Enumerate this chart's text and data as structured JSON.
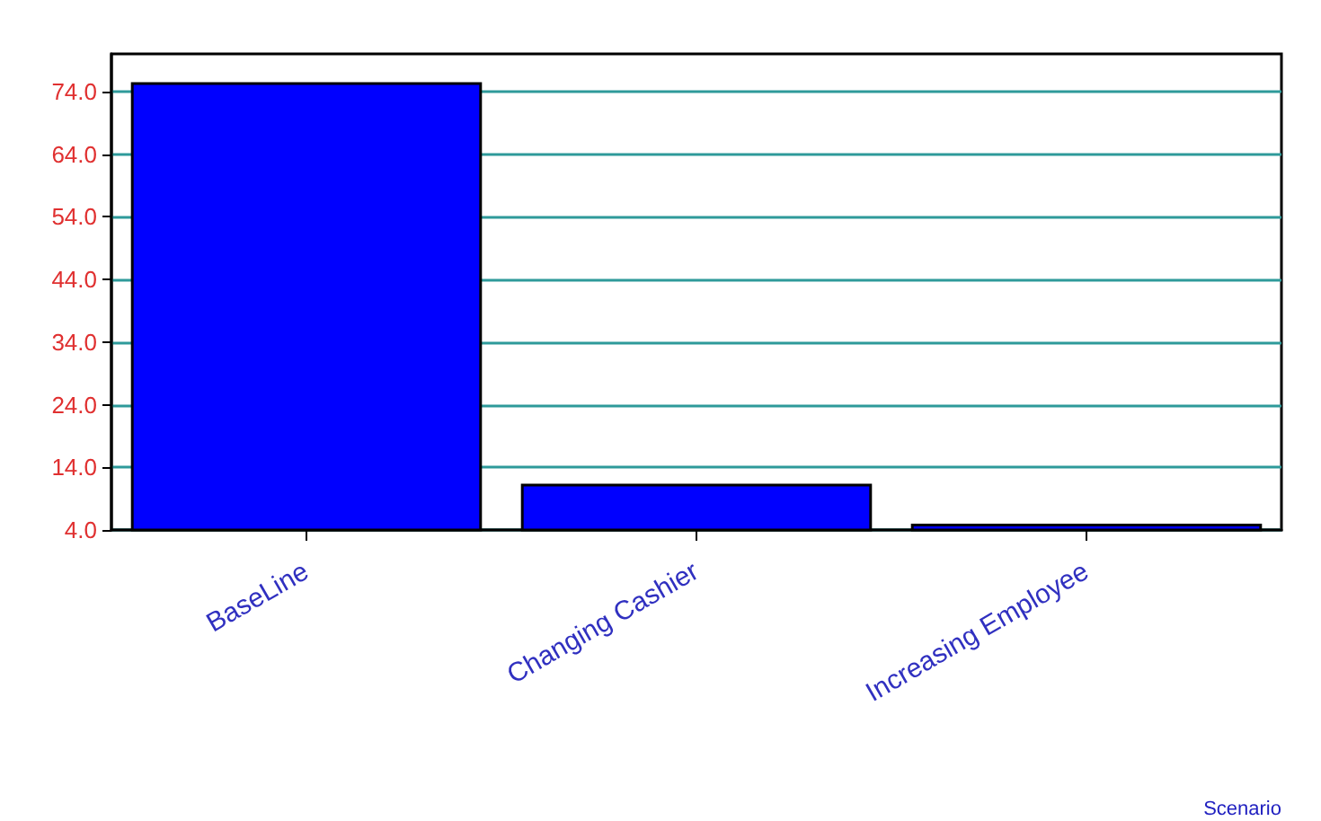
{
  "chart_data": {
    "type": "bar",
    "xlabel": "Scenario",
    "categories": [
      "BaseLine",
      "Changing Cashier",
      "Increasing Employee"
    ],
    "values": [
      75.5,
      11.4,
      5.0
    ],
    "color": "#0000ff",
    "ylim": [
      4,
      80
    ],
    "yticks": [
      {
        "value": 4,
        "label": "4.0"
      },
      {
        "value": 14,
        "label": "14.0"
      },
      {
        "value": 24,
        "label": "24.0"
      },
      {
        "value": 34,
        "label": "34.0"
      },
      {
        "value": 44,
        "label": "44.0"
      },
      {
        "value": 54,
        "label": "54.0"
      },
      {
        "value": 64,
        "label": "64.0"
      },
      {
        "value": 74,
        "label": "74.0"
      }
    ],
    "grid": "y"
  }
}
